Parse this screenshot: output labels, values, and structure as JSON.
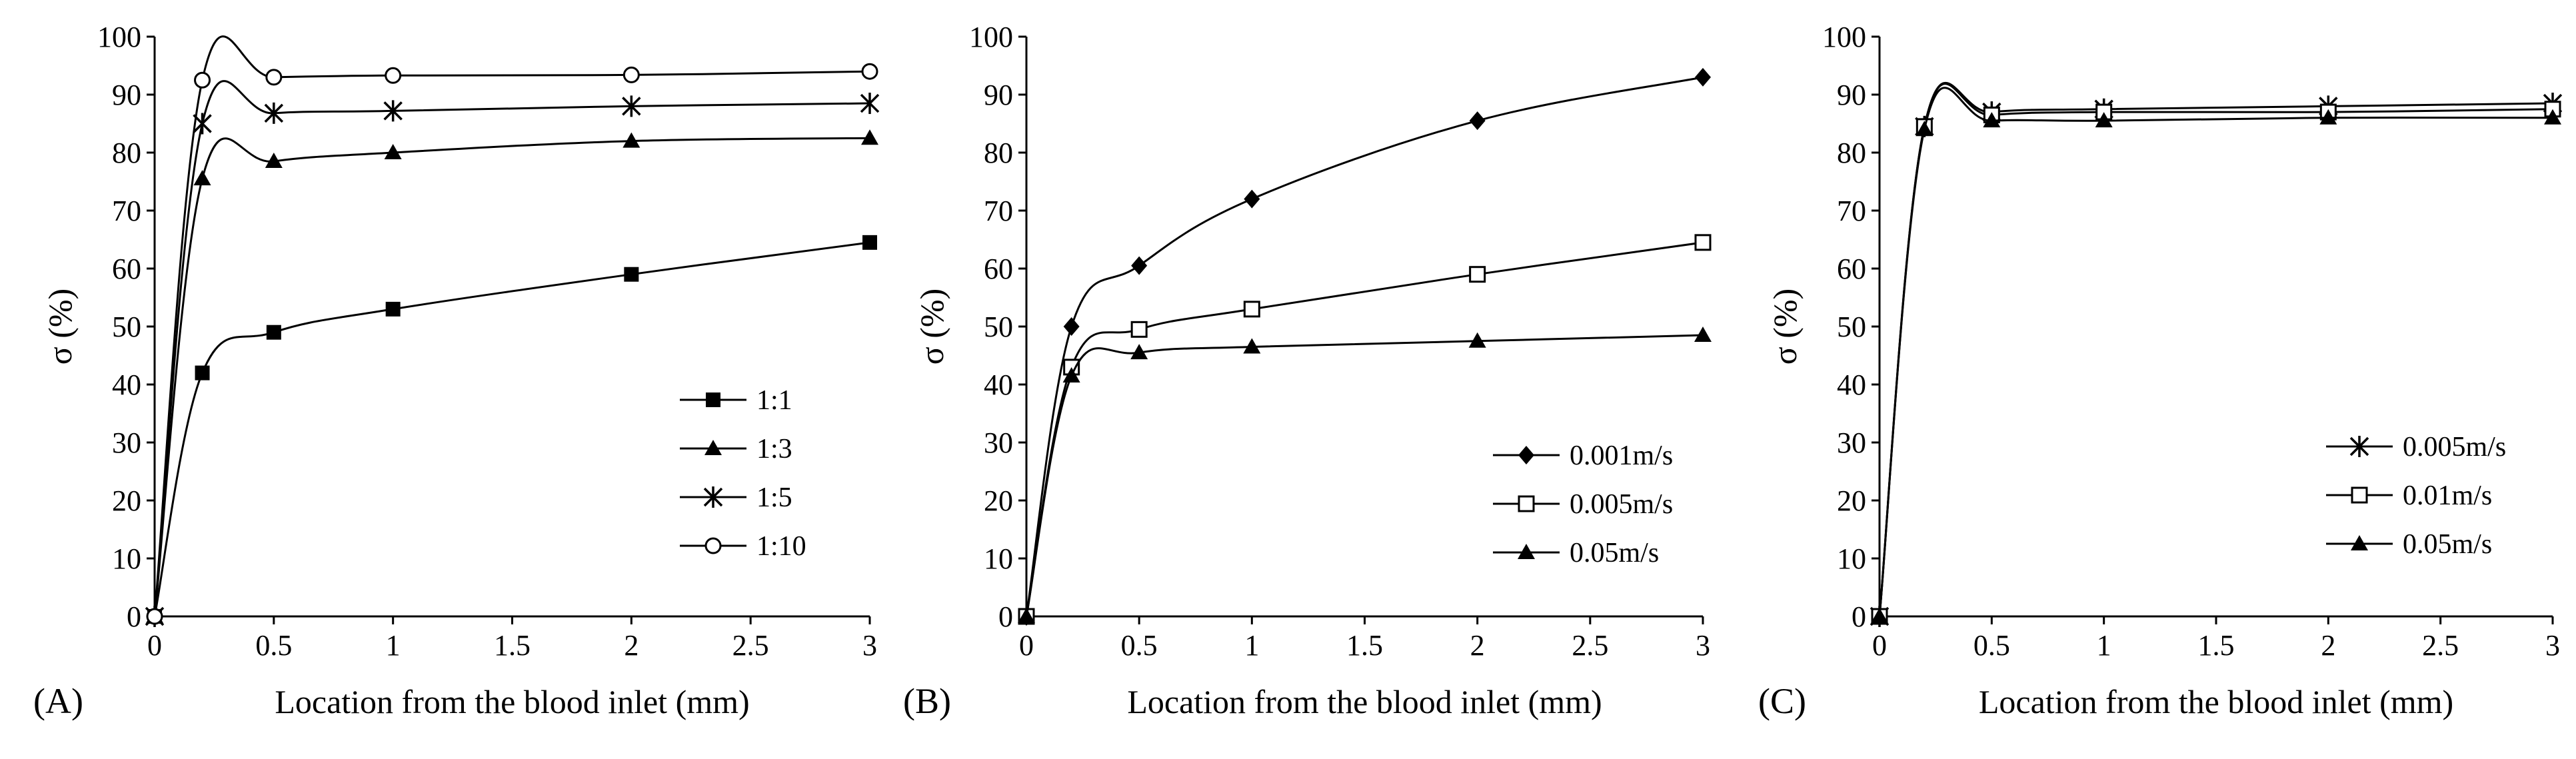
{
  "chart_data": [
    {
      "type": "line",
      "panel_label": "(A)",
      "xlabel": "Location from the blood inlet (mm)",
      "ylabel": "σ (%)",
      "xlim": [
        0,
        3
      ],
      "ylim": [
        0,
        100
      ],
      "x_ticks": [
        "0",
        "0.5",
        "1",
        "1.5",
        "2",
        "2.5",
        "3"
      ],
      "y_ticks": [
        "0",
        "10",
        "20",
        "30",
        "40",
        "50",
        "60",
        "70",
        "80",
        "90",
        "100"
      ],
      "grid": false,
      "legend_position": "center-right",
      "series": [
        {
          "name": "1:1",
          "marker": "square-filled",
          "x": [
            0,
            0.2,
            0.5,
            1,
            2,
            3
          ],
          "y": [
            0,
            42,
            49,
            53,
            59,
            64.5
          ]
        },
        {
          "name": "1:3",
          "marker": "triangle-filled",
          "x": [
            0,
            0.2,
            0.5,
            1,
            2,
            3
          ],
          "y": [
            0,
            75.5,
            78.5,
            80,
            82,
            82.5
          ]
        },
        {
          "name": "1:5",
          "marker": "asterisk",
          "x": [
            0,
            0.2,
            0.5,
            1,
            2,
            3
          ],
          "y": [
            0,
            85,
            86.8,
            87.2,
            88,
            88.5
          ]
        },
        {
          "name": "1:10",
          "marker": "circle-open",
          "x": [
            0,
            0.2,
            0.5,
            1,
            2,
            3
          ],
          "y": [
            0,
            92.5,
            93,
            93.3,
            93.4,
            94
          ]
        }
      ]
    },
    {
      "type": "line",
      "panel_label": "(B)",
      "xlabel": "Location from the blood inlet (mm)",
      "ylabel": "σ (%)",
      "xlim": [
        0,
        3
      ],
      "ylim": [
        0,
        100
      ],
      "x_ticks": [
        "0",
        "0.5",
        "1",
        "1.5",
        "2",
        "2.5",
        "3"
      ],
      "y_ticks": [
        "0",
        "10",
        "20",
        "30",
        "40",
        "50",
        "60",
        "70",
        "80",
        "90",
        "100"
      ],
      "grid": false,
      "legend_position": "bottom-right",
      "series": [
        {
          "name": "0.001m/s",
          "marker": "diamond-filled",
          "x": [
            0,
            0.2,
            0.5,
            1,
            2,
            3
          ],
          "y": [
            0,
            50,
            60.5,
            72,
            85.5,
            93
          ]
        },
        {
          "name": "0.005m/s",
          "marker": "square-open",
          "x": [
            0,
            0.2,
            0.5,
            1,
            2,
            3
          ],
          "y": [
            0,
            43,
            49.5,
            53,
            59,
            64.5
          ]
        },
        {
          "name": "0.05m/s",
          "marker": "triangle-filled",
          "x": [
            0,
            0.2,
            0.5,
            1,
            2,
            3
          ],
          "y": [
            0,
            41.5,
            45.5,
            46.5,
            47.5,
            48.5
          ]
        }
      ]
    },
    {
      "type": "line",
      "panel_label": "(C)",
      "xlabel": "Location from the blood inlet (mm)",
      "ylabel": "σ (%)",
      "xlim": [
        0,
        3
      ],
      "ylim": [
        0,
        100
      ],
      "x_ticks": [
        "0",
        "0.5",
        "1",
        "1.5",
        "2",
        "2.5",
        "3"
      ],
      "y_ticks": [
        "0",
        "10",
        "20",
        "30",
        "40",
        "50",
        "60",
        "70",
        "80",
        "90",
        "100"
      ],
      "grid": false,
      "legend_position": "bottom-right",
      "series": [
        {
          "name": "0.005m/s",
          "marker": "asterisk",
          "x": [
            0,
            0.2,
            0.5,
            1,
            2,
            3
          ],
          "y": [
            0,
            84.5,
            87,
            87.5,
            88,
            88.5
          ]
        },
        {
          "name": "0.01m/s",
          "marker": "square-open",
          "x": [
            0,
            0.2,
            0.5,
            1,
            2,
            3
          ],
          "y": [
            0,
            84.5,
            86.5,
            87,
            87,
            87.5
          ]
        },
        {
          "name": "0.05m/s",
          "marker": "triangle-filled",
          "x": [
            0,
            0.2,
            0.5,
            1,
            2,
            3
          ],
          "y": [
            0,
            84,
            85.5,
            85.5,
            86,
            86
          ]
        }
      ]
    }
  ]
}
